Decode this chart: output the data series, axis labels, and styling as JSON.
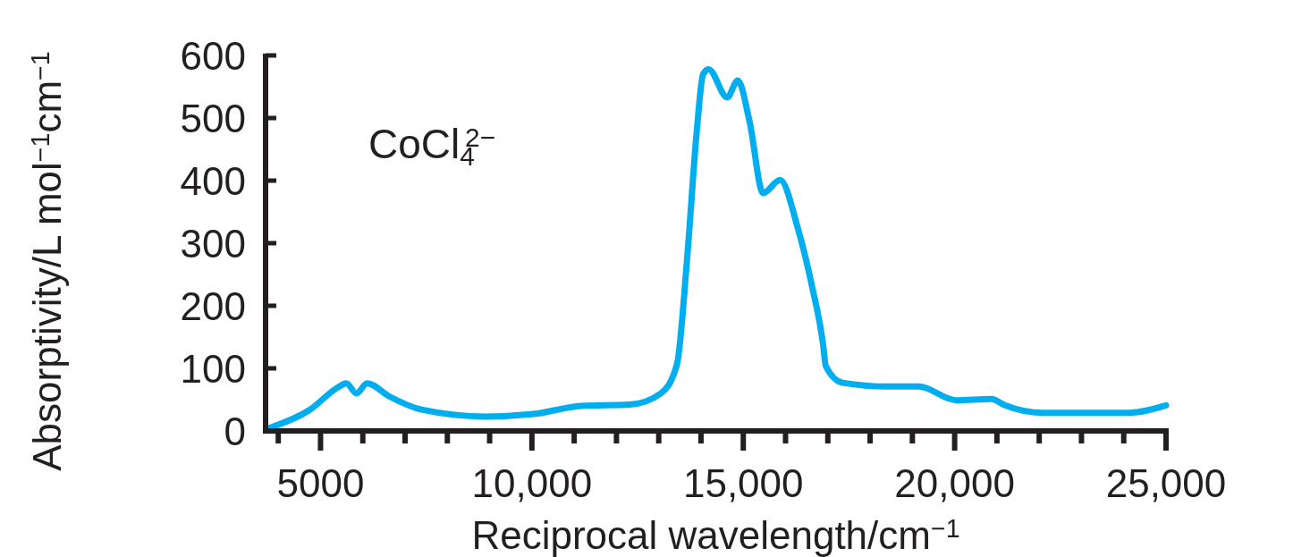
{
  "chart_data": {
    "type": "line",
    "xlabel": "Reciprocal wavelength/cm$^{−1}$",
    "ylabel": "Absorptivity/L mol$^{−1}$cm$^{−1}$",
    "annotations": [
      "CoCl$_{4}$$^{2−}$"
    ],
    "xlim": [
      3700,
      25000
    ],
    "xticks": [
      {
        "value": 4000,
        "label": null
      },
      {
        "value": 5000,
        "label": "5000"
      },
      {
        "value": 6000,
        "label": null
      },
      {
        "value": 7000,
        "label": null
      },
      {
        "value": 8000,
        "label": null
      },
      {
        "value": 9000,
        "label": null
      },
      {
        "value": 10000,
        "label": "10,000"
      },
      {
        "value": 11000,
        "label": null
      },
      {
        "value": 12000,
        "label": null
      },
      {
        "value": 13000,
        "label": null
      },
      {
        "value": 14000,
        "label": null
      },
      {
        "value": 15000,
        "label": "15,000"
      },
      {
        "value": 16000,
        "label": null
      },
      {
        "value": 17000,
        "label": null
      },
      {
        "value": 18000,
        "label": null
      },
      {
        "value": 19000,
        "label": null
      },
      {
        "value": 20000,
        "label": "20,000"
      },
      {
        "value": 21000,
        "label": null
      },
      {
        "value": 22000,
        "label": null
      },
      {
        "value": 23000,
        "label": null
      },
      {
        "value": 24000,
        "label": null
      },
      {
        "value": 25000,
        "label": "25,000"
      }
    ],
    "ylim": [
      0,
      600
    ],
    "yticks": [
      0,
      100,
      200,
      300,
      400,
      500,
      600
    ],
    "grid": false,
    "marker": "none",
    "line_style": "solid",
    "series": [
      {
        "color": "#00aeef",
        "x": [
          3800,
          4750,
          5420,
          5610,
          5850,
          6100,
          6630,
          7390,
          8900,
          10040,
          11170,
          12310,
          13050,
          13430,
          13670,
          13900,
          14050,
          14180,
          14620,
          14870,
          15150,
          15470,
          15870,
          16290,
          16630,
          16890,
          16950,
          17350,
          18410,
          19150,
          20040,
          20870,
          21190,
          22080,
          24110,
          25000
        ],
        "values": [
          5,
          34,
          70,
          76,
          60,
          76,
          55,
          34,
          23,
          27,
          40,
          42,
          60,
          106,
          274,
          479,
          570,
          578,
          533,
          560,
          494,
          380,
          401,
          324,
          230,
          137,
          104,
          77,
          71,
          71,
          49,
          51,
          41,
          29,
          29,
          41
        ]
      }
    ]
  }
}
